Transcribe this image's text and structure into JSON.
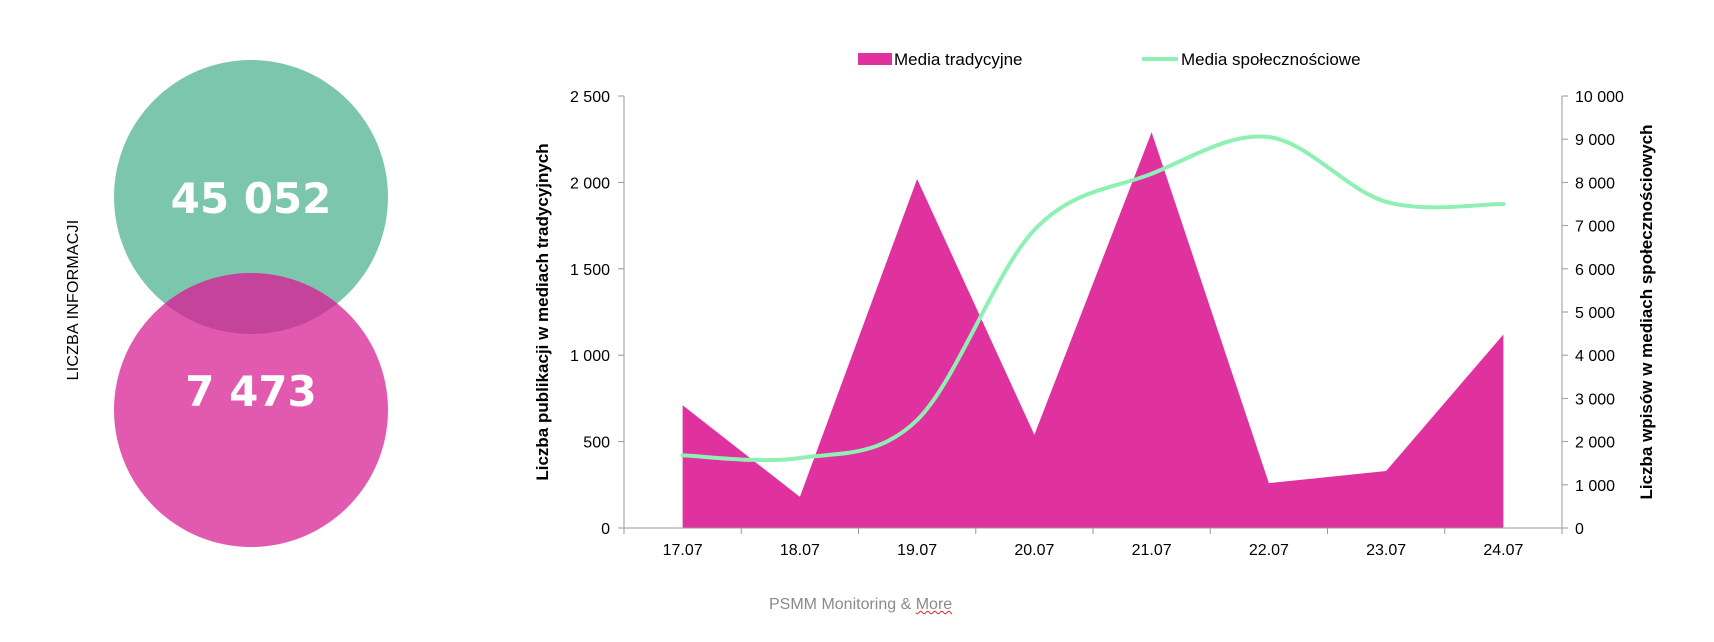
{
  "side_label": "LICZBA INFORMACJI",
  "venn": {
    "top_value": "45 052",
    "bottom_value": "7 473",
    "top_color": "#7dc6ae",
    "bottom_color": "#e25ab0",
    "overlap_color": "#c4439b"
  },
  "footer": {
    "text_start": "PSMM Monitoring & ",
    "text_end": "More"
  },
  "chart_data": {
    "type": "area",
    "categories": [
      "17.07",
      "18.07",
      "19.07",
      "20.07",
      "21.07",
      "22.07",
      "23.07",
      "24.07"
    ],
    "series": [
      {
        "name": "Media tradycyjne",
        "type": "area",
        "axis": "left",
        "color": "#e0329f",
        "values": [
          710,
          180,
          2020,
          540,
          2290,
          260,
          330,
          1120
        ]
      },
      {
        "name": "Media społecznościowe",
        "type": "line",
        "axis": "right",
        "color": "#8ff0b4",
        "values": [
          1680,
          1620,
          2500,
          6900,
          8200,
          9050,
          7550,
          7500
        ]
      }
    ],
    "ylabel_left": "Liczba publikacji w mediach tradycyjnych",
    "ylabel_right": "Liczba wpisów w mediach społecznościowych",
    "ylim_left": [
      0,
      2500
    ],
    "ylim_right": [
      0,
      10000
    ],
    "yticks_left": [
      "0",
      "500",
      "1 000",
      "1 500",
      "2 000",
      "2 500"
    ],
    "yticks_right": [
      "0",
      "1 000",
      "2 000",
      "3 000",
      "4 000",
      "5 000",
      "6 000",
      "7 000",
      "8 000",
      "9 000",
      "10 000"
    ],
    "legend_position": "top",
    "grid": false
  }
}
